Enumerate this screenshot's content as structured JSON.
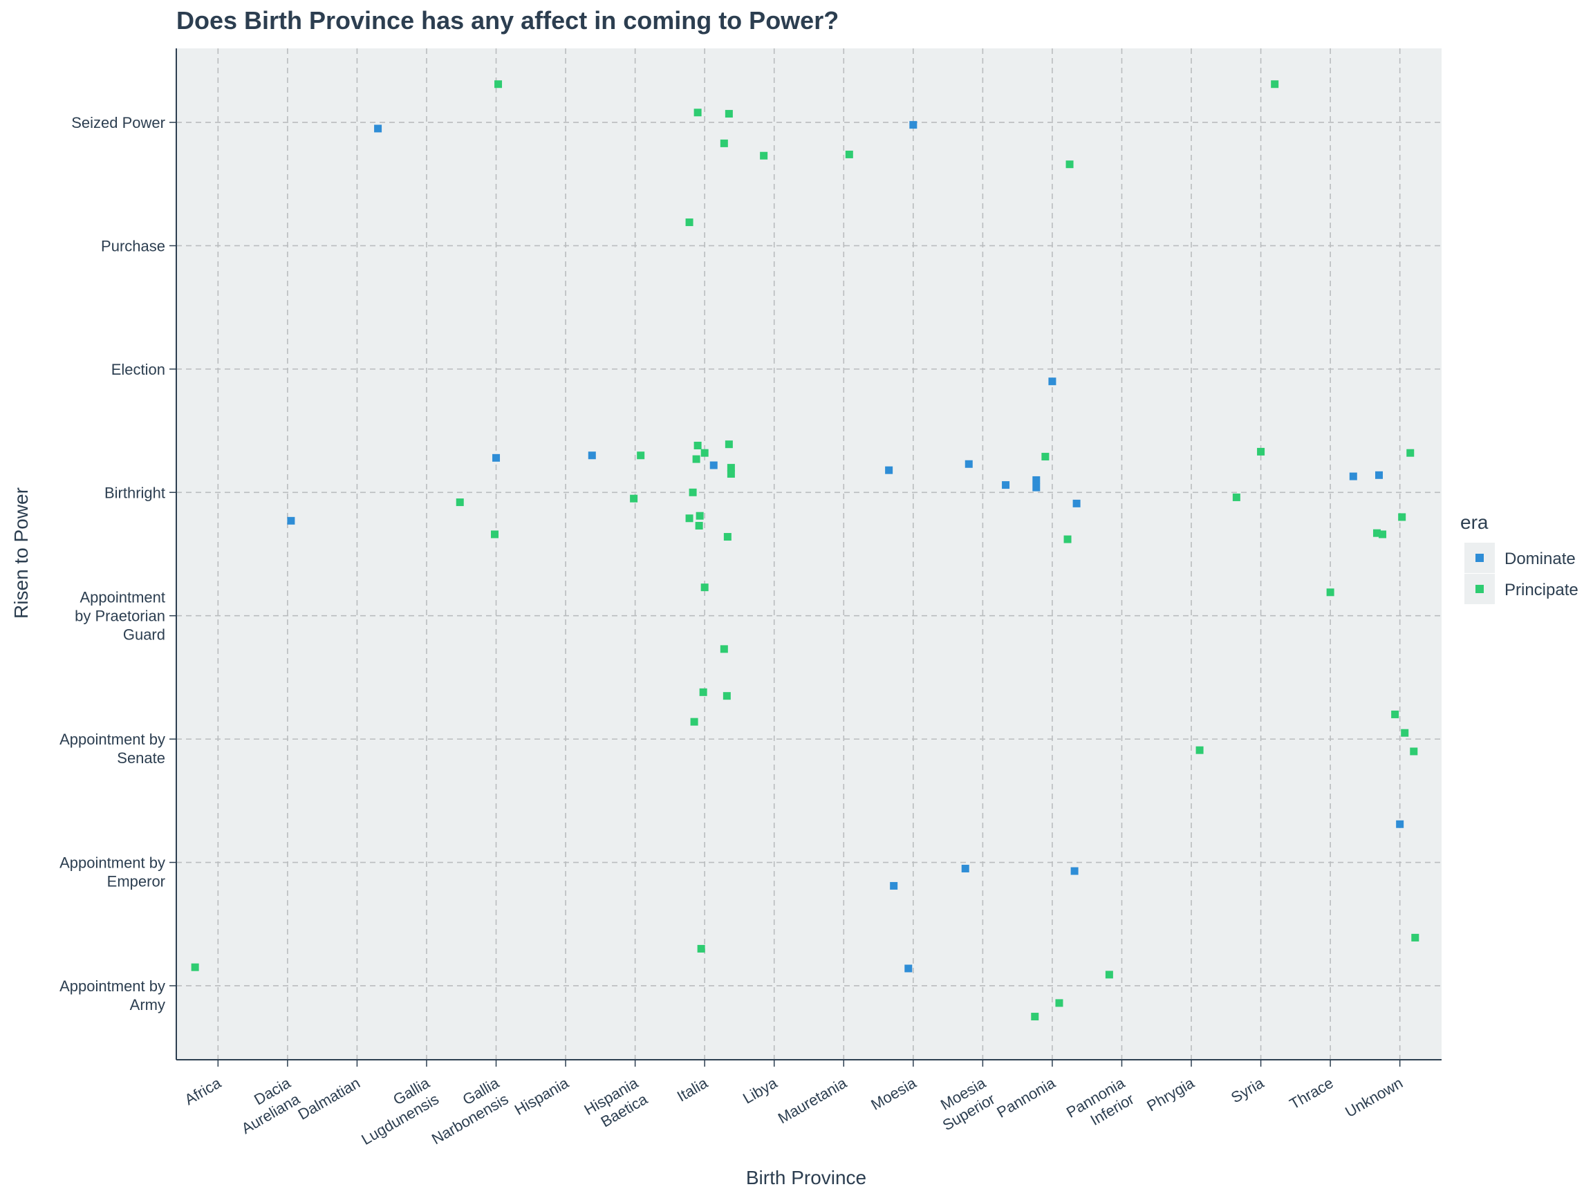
{
  "chart_data": {
    "type": "scatter",
    "title": "Does Birth Province has any affect in coming to Power?",
    "xlabel": "Birth Province",
    "ylabel": "Risen to Power",
    "categories_x": [
      "Africa",
      "Dacia Aureliana",
      "Dalmatian",
      "Gallia Lugdunensis",
      "Gallia Narbonensis",
      "Hispania",
      "Hispania Baetica",
      "Italia",
      "Libya",
      "Mauretania",
      "Moesia",
      "Moesia Superior",
      "Pannonia",
      "Pannonia Inferior",
      "Phrygia",
      "Syria",
      "Thrace",
      "Unknown"
    ],
    "x_tick_labels": [
      [
        "Africa"
      ],
      [
        "Dacia",
        "Aureliana"
      ],
      [
        "Dalmatian"
      ],
      [
        "Gallia",
        "Lugdunensis"
      ],
      [
        "Gallia",
        "Narbonensis"
      ],
      [
        "Hispania"
      ],
      [
        "Hispania",
        "Baetica"
      ],
      [
        "Italia"
      ],
      [
        "Libya"
      ],
      [
        "Mauretania"
      ],
      [
        "Moesia"
      ],
      [
        "Moesia",
        "Superior"
      ],
      [
        "Pannonia"
      ],
      [
        "Pannonia",
        "Inferior"
      ],
      [
        "Phrygia"
      ],
      [
        "Syria"
      ],
      [
        "Thrace"
      ],
      [
        "Unknown"
      ]
    ],
    "categories_y": [
      "Appointment by Army",
      "Appointment by Emperor",
      "Appointment by Senate",
      "Appointment by Praetorian Guard",
      "Birthright",
      "Election",
      "Purchase",
      "Seized Power"
    ],
    "y_tick_labels": [
      [
        "Appointment by",
        "Army"
      ],
      [
        "Appointment by",
        "Emperor"
      ],
      [
        "Appointment by",
        "Senate"
      ],
      [
        "Appointment",
        "by Praetorian",
        "Guard"
      ],
      [
        "Birthright"
      ],
      [
        "Election"
      ],
      [
        "Purchase"
      ],
      [
        "Seized Power"
      ]
    ],
    "xlim": [
      -0.6,
      17.6
    ],
    "ylim": [
      -0.6,
      7.6
    ],
    "jitter": "points are jittered around each category",
    "grid": true,
    "legend": {
      "title": "era",
      "placement": "right",
      "entries": [
        "Dominate",
        "Principate"
      ]
    },
    "colors": {
      "Dominate": "#2E8DD6",
      "Principate": "#2ECC71",
      "panel": "#ECEFF0",
      "text": "#2C3E50",
      "grid": "#B9BCBE"
    },
    "series": [
      {
        "name": "Dominate",
        "points": [
          {
            "x": 2.3,
            "y": 6.95
          },
          {
            "x": 10.0,
            "y": 6.98
          },
          {
            "x": 12.0,
            "y": 4.9
          },
          {
            "x": 4.0,
            "y": 4.28
          },
          {
            "x": 5.38,
            "y": 4.3
          },
          {
            "x": 7.13,
            "y": 4.22
          },
          {
            "x": 10.8,
            "y": 4.23
          },
          {
            "x": 9.65,
            "y": 4.18
          },
          {
            "x": 11.33,
            "y": 4.06
          },
          {
            "x": 11.77,
            "y": 4.1
          },
          {
            "x": 11.77,
            "y": 4.04
          },
          {
            "x": 12.35,
            "y": 3.91
          },
          {
            "x": 16.33,
            "y": 4.13
          },
          {
            "x": 16.7,
            "y": 4.14
          },
          {
            "x": 1.05,
            "y": 3.77
          },
          {
            "x": 17.0,
            "y": 1.31
          },
          {
            "x": 10.75,
            "y": 0.95
          },
          {
            "x": 12.32,
            "y": 0.93
          },
          {
            "x": 9.72,
            "y": 0.81
          },
          {
            "x": 9.93,
            "y": 0.14
          }
        ]
      },
      {
        "name": "Principate",
        "points": [
          {
            "x": 4.03,
            "y": 7.31
          },
          {
            "x": 15.2,
            "y": 7.31
          },
          {
            "x": 6.9,
            "y": 7.08
          },
          {
            "x": 7.35,
            "y": 7.07
          },
          {
            "x": 7.28,
            "y": 6.83
          },
          {
            "x": 7.85,
            "y": 6.73
          },
          {
            "x": 9.08,
            "y": 6.74
          },
          {
            "x": 12.25,
            "y": 6.66
          },
          {
            "x": 6.78,
            "y": 6.19
          },
          {
            "x": 6.9,
            "y": 4.38
          },
          {
            "x": 7.35,
            "y": 4.39
          },
          {
            "x": 7.0,
            "y": 4.32
          },
          {
            "x": 6.88,
            "y": 4.27
          },
          {
            "x": 7.38,
            "y": 4.2
          },
          {
            "x": 7.38,
            "y": 4.15
          },
          {
            "x": 6.08,
            "y": 4.3
          },
          {
            "x": 11.9,
            "y": 4.29
          },
          {
            "x": 15.0,
            "y": 4.33
          },
          {
            "x": 17.15,
            "y": 4.32
          },
          {
            "x": 6.83,
            "y": 4.0
          },
          {
            "x": 5.98,
            "y": 3.95
          },
          {
            "x": 14.65,
            "y": 3.96
          },
          {
            "x": 3.48,
            "y": 3.92
          },
          {
            "x": 6.78,
            "y": 3.79
          },
          {
            "x": 6.93,
            "y": 3.81
          },
          {
            "x": 6.92,
            "y": 3.73
          },
          {
            "x": 17.03,
            "y": 3.8
          },
          {
            "x": 3.98,
            "y": 3.66
          },
          {
            "x": 7.33,
            "y": 3.64
          },
          {
            "x": 12.22,
            "y": 3.62
          },
          {
            "x": 16.67,
            "y": 3.67
          },
          {
            "x": 16.75,
            "y": 3.66
          },
          {
            "x": 7.0,
            "y": 3.23
          },
          {
            "x": 16.0,
            "y": 3.19
          },
          {
            "x": 7.28,
            "y": 2.73
          },
          {
            "x": 6.98,
            "y": 2.38
          },
          {
            "x": 7.32,
            "y": 2.35
          },
          {
            "x": 6.85,
            "y": 2.14
          },
          {
            "x": 16.93,
            "y": 2.2
          },
          {
            "x": 17.07,
            "y": 2.05
          },
          {
            "x": 14.12,
            "y": 1.91
          },
          {
            "x": 17.2,
            "y": 1.9
          },
          {
            "x": 6.95,
            "y": 0.3
          },
          {
            "x": 17.22,
            "y": 0.39
          },
          {
            "x": -0.33,
            "y": 0.15
          },
          {
            "x": 12.82,
            "y": 0.09
          },
          {
            "x": 12.1,
            "y": -0.14
          },
          {
            "x": 11.75,
            "y": -0.25
          }
        ]
      }
    ]
  }
}
